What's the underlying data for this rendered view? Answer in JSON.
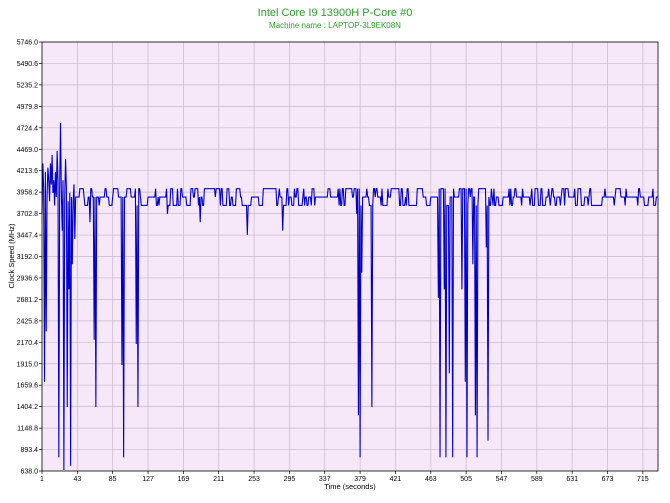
{
  "colors": {
    "title": "#2e9a2e",
    "plot_bg": "#f6e8f8",
    "grid": "#c9b8cc",
    "series": "#0000cc"
  },
  "chart_data": {
    "type": "line",
    "title": "Intel Core I9 13900H P-Core #0",
    "subtitle": "Machine name : LAPTOP-3L9EK08N",
    "xlabel": "Time (seconds)",
    "ylabel": "Clock Speed (MHz)",
    "xlim": [
      1,
      733
    ],
    "ylim": [
      638.0,
      5746.0
    ],
    "xticks": [
      "1",
      "43",
      "85",
      "127",
      "169",
      "211",
      "253",
      "295",
      "337",
      "379",
      "421",
      "463",
      "505",
      "547",
      "589",
      "631",
      "673",
      "715"
    ],
    "yticks": [
      "638.0",
      "893.4",
      "1148.8",
      "1404.2",
      "1659.6",
      "1915.0",
      "2170.4",
      "2425.8",
      "2681.2",
      "2936.6",
      "3192.0",
      "3447.4",
      "3702.8",
      "3958.2",
      "4213.6",
      "4469.0",
      "4724.4",
      "4979.8",
      "5235.2",
      "5490.6",
      "5746.0"
    ],
    "grid": true,
    "baseline": {
      "levels": [
        3800,
        3900,
        4000
      ],
      "start_level": 3900,
      "end_x": 733
    },
    "early_samples": [
      [
        1,
        3700
      ],
      [
        2,
        4300
      ],
      [
        3,
        4000
      ],
      [
        4,
        4400
      ],
      [
        5,
        4200
      ],
      [
        6,
        4480
      ],
      [
        7,
        3900
      ],
      [
        8,
        4250
      ],
      [
        9,
        4100
      ],
      [
        10,
        3850
      ],
      [
        11,
        4300
      ],
      [
        12,
        4050
      ],
      [
        13,
        4400
      ],
      [
        14,
        3950
      ],
      [
        15,
        4100
      ],
      [
        16,
        3800
      ],
      [
        17,
        4200
      ],
      [
        18,
        3900
      ],
      [
        19,
        4450
      ],
      [
        20,
        4100
      ],
      [
        21,
        4700
      ],
      [
        22,
        4000
      ],
      [
        23,
        4780
      ],
      [
        24,
        3950
      ],
      [
        25,
        4600
      ],
      [
        26,
        4100
      ],
      [
        27,
        4550
      ],
      [
        28,
        3900
      ],
      [
        29,
        4350
      ],
      [
        30,
        4000
      ],
      [
        31,
        4650
      ],
      [
        32,
        3850
      ],
      [
        33,
        4300
      ],
      [
        34,
        3950
      ],
      [
        35,
        4500
      ],
      [
        36,
        3900
      ],
      [
        37,
        4200
      ],
      [
        38,
        3850
      ],
      [
        39,
        4050
      ],
      [
        40,
        3950
      ]
    ],
    "events": [
      [
        4,
        1700
      ],
      [
        6,
        2300
      ],
      [
        21,
        800
      ],
      [
        25,
        3500
      ],
      [
        27,
        650
      ],
      [
        31,
        1400
      ],
      [
        33,
        2800
      ],
      [
        35,
        700
      ],
      [
        37,
        3100
      ],
      [
        40,
        3400
      ],
      [
        58,
        3600
      ],
      [
        63,
        2200
      ],
      [
        65,
        1400
      ],
      [
        69,
        3800
      ],
      [
        96,
        1900
      ],
      [
        98,
        800
      ],
      [
        113,
        2150
      ],
      [
        115,
        1400
      ],
      [
        150,
        3700
      ],
      [
        189,
        3600
      ],
      [
        245,
        3450
      ],
      [
        287,
        3500
      ],
      [
        375,
        3700
      ],
      [
        377,
        1300
      ],
      [
        379,
        800
      ],
      [
        381,
        3000
      ],
      [
        393,
        1400
      ],
      [
        472,
        2700
      ],
      [
        474,
        800
      ],
      [
        479,
        2800
      ],
      [
        481,
        800
      ],
      [
        485,
        1800
      ],
      [
        489,
        800
      ],
      [
        500,
        2800
      ],
      [
        504,
        1700
      ],
      [
        506,
        800
      ],
      [
        513,
        3100
      ],
      [
        516,
        1300
      ],
      [
        518,
        800
      ],
      [
        529,
        3300
      ],
      [
        531,
        1000
      ]
    ]
  }
}
